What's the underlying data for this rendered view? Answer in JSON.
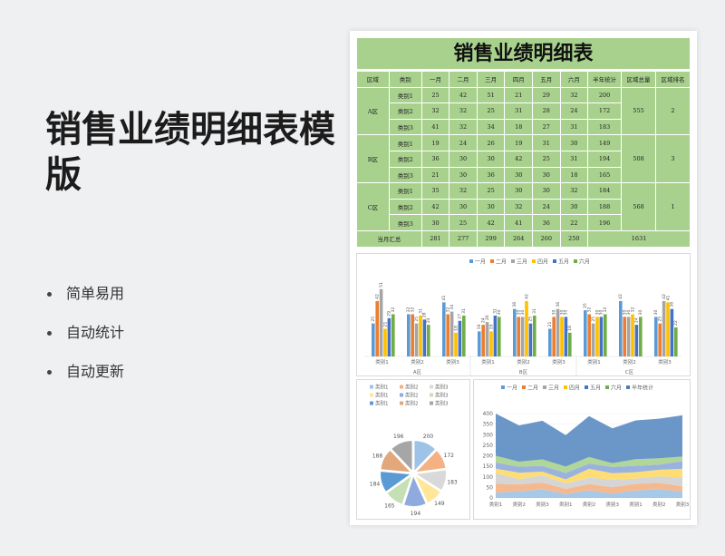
{
  "promo": {
    "title": "销售业绩明细表模版",
    "bullets": [
      "简单易用",
      "自动统计",
      "自动更新"
    ]
  },
  "sheet": {
    "title": "销售业绩明细表",
    "headers": [
      "区域",
      "类别",
      "一月",
      "二月",
      "三月",
      "四月",
      "五月",
      "六月",
      "半年统计",
      "区域总量",
      "区域排名"
    ],
    "regions": [
      {
        "name": "A区",
        "total": "555",
        "rank": "2",
        "rows": [
          {
            "cat": "类别1",
            "v": [
              "25",
              "42",
              "51",
              "21",
              "29",
              "32"
            ],
            "sum": "200"
          },
          {
            "cat": "类别2",
            "v": [
              "32",
              "32",
              "25",
              "31",
              "28",
              "24"
            ],
            "sum": "172"
          },
          {
            "cat": "类别3",
            "v": [
              "41",
              "32",
              "34",
              "18",
              "27",
              "31"
            ],
            "sum": "183"
          }
        ]
      },
      {
        "name": "B区",
        "total": "508",
        "rank": "3",
        "rows": [
          {
            "cat": "类别1",
            "v": [
              "19",
              "24",
              "26",
              "19",
              "31",
              "30"
            ],
            "sum": "149"
          },
          {
            "cat": "类别2",
            "v": [
              "36",
              "30",
              "30",
              "42",
              "25",
              "31"
            ],
            "sum": "194"
          },
          {
            "cat": "类别3",
            "v": [
              "21",
              "30",
              "36",
              "30",
              "30",
              "18"
            ],
            "sum": "165"
          }
        ]
      },
      {
        "name": "C区",
        "total": "568",
        "rank": "1",
        "rows": [
          {
            "cat": "类别1",
            "v": [
              "35",
              "32",
              "25",
              "30",
              "30",
              "32"
            ],
            "sum": "184"
          },
          {
            "cat": "类别2",
            "v": [
              "42",
              "30",
              "30",
              "32",
              "24",
              "30"
            ],
            "sum": "188"
          },
          {
            "cat": "类别3",
            "v": [
              "30",
              "25",
              "42",
              "41",
              "36",
              "22"
            ],
            "sum": "196"
          }
        ]
      }
    ],
    "footer": {
      "label": "当月汇总",
      "values": [
        "281",
        "277",
        "299",
        "264",
        "260",
        "250"
      ],
      "grand_total": "1631"
    }
  },
  "colors": {
    "header_green": "#a9d18e",
    "series": [
      "#5b9bd5",
      "#ed7d31",
      "#a5a5a5",
      "#ffc000",
      "#4472c4",
      "#70ad47"
    ]
  },
  "chart_data": [
    {
      "type": "bar",
      "legend": [
        "一月",
        "二月",
        "三月",
        "四月",
        "五月",
        "六月"
      ],
      "groups": [
        "A区",
        "B区",
        "C区"
      ],
      "categories": [
        "类别1",
        "类别2",
        "类别3",
        "类别1",
        "类别2",
        "类别3",
        "类别1",
        "类别2",
        "类别3"
      ],
      "series": [
        {
          "name": "一月",
          "values": [
            25,
            32,
            41,
            19,
            36,
            21,
            35,
            42,
            30
          ]
        },
        {
          "name": "二月",
          "values": [
            42,
            32,
            32,
            24,
            30,
            30,
            32,
            30,
            25
          ]
        },
        {
          "name": "三月",
          "values": [
            51,
            25,
            34,
            26,
            30,
            36,
            25,
            30,
            42
          ]
        },
        {
          "name": "四月",
          "values": [
            21,
            31,
            18,
            19,
            42,
            30,
            30,
            32,
            41
          ]
        },
        {
          "name": "五月",
          "values": [
            29,
            28,
            27,
            31,
            25,
            30,
            30,
            24,
            36
          ]
        },
        {
          "name": "六月",
          "values": [
            32,
            24,
            31,
            30,
            31,
            18,
            32,
            30,
            22
          ]
        }
      ],
      "ylim": [
        0,
        55
      ],
      "data_labels": true,
      "legend_position": "top"
    },
    {
      "type": "pie",
      "legend": [
        "类别1",
        "类别2",
        "类别3",
        "类别1",
        "类别2",
        "类别3",
        "类别1",
        "类别2",
        "类别3"
      ],
      "values": [
        200,
        172,
        183,
        149,
        194,
        165,
        184,
        188,
        196
      ],
      "colors": [
        "#9dc3e6",
        "#f4b183",
        "#d9d9d9",
        "#ffe699",
        "#8faadc",
        "#c5e0b4",
        "#5b9bd5",
        "#e2a77b",
        "#a6a6a6"
      ],
      "legend_position": "top"
    },
    {
      "type": "area",
      "stacked": true,
      "legend": [
        "一月",
        "二月",
        "三月",
        "四月",
        "五月",
        "六月",
        "半年统计"
      ],
      "categories": [
        "类别1",
        "类别2",
        "类别3",
        "类别1",
        "类别2",
        "类别3",
        "类别1",
        "类别2",
        "类别3"
      ],
      "series": [
        {
          "name": "一月",
          "values": [
            25,
            32,
            41,
            19,
            36,
            21,
            35,
            42,
            30
          ]
        },
        {
          "name": "二月",
          "values": [
            42,
            32,
            32,
            24,
            30,
            30,
            32,
            30,
            25
          ]
        },
        {
          "name": "三月",
          "values": [
            51,
            25,
            34,
            26,
            30,
            36,
            25,
            30,
            42
          ]
        },
        {
          "name": "四月",
          "values": [
            21,
            31,
            18,
            19,
            42,
            30,
            30,
            32,
            41
          ]
        },
        {
          "name": "五月",
          "values": [
            29,
            28,
            27,
            31,
            25,
            30,
            30,
            24,
            36
          ]
        },
        {
          "name": "六月",
          "values": [
            32,
            24,
            31,
            30,
            31,
            18,
            32,
            30,
            22
          ]
        },
        {
          "name": "半年统计",
          "values": [
            200,
            172,
            183,
            149,
            194,
            165,
            184,
            188,
            196
          ]
        }
      ],
      "yticks": [
        "0",
        "50",
        "100",
        "150",
        "200",
        "250",
        "300",
        "350",
        "400"
      ],
      "ylim": [
        0,
        400
      ],
      "legend_position": "top"
    }
  ]
}
